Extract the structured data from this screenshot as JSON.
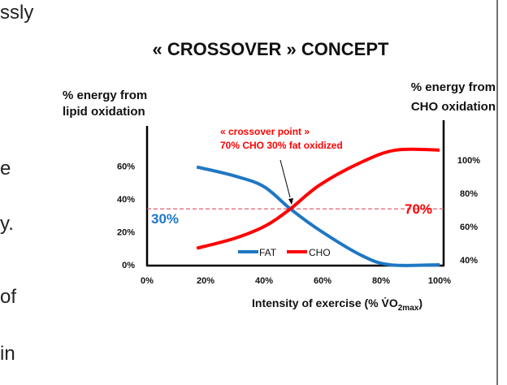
{
  "background_text": [
    "ssly",
    "e",
    "y.",
    "of",
    "in"
  ],
  "chart_data": {
    "type": "line",
    "title": "« CROSSOVER » CONCEPT",
    "xlabel": "Intensity of exercise (% V̇O",
    "xlabel_sub": "2max",
    "xlabel_end": ")",
    "ylabel_left": [
      "% energy from",
      "lipid oxidation"
    ],
    "ylabel_right": [
      "% energy from",
      "CHO oxidation"
    ],
    "x_ticks": [
      "0%",
      "20%",
      "40%",
      "60%",
      "80%",
      "100%"
    ],
    "y_left_ticks": [
      "0%",
      "20%",
      "40%",
      "60%"
    ],
    "y_right_ticks": [
      "40%",
      "60%",
      "80%",
      "100%"
    ],
    "xlim": [
      0,
      100
    ],
    "ylim_left": [
      0,
      84
    ],
    "ylim_right": [
      40,
      123
    ],
    "series": [
      {
        "name": "FAT",
        "axis": "left",
        "color": "#1f77c4",
        "x": [
          17,
          30,
          40,
          49,
          59,
          73,
          83,
          100
        ],
        "y": [
          59.5,
          54,
          47.5,
          34,
          21,
          6,
          0,
          0
        ]
      },
      {
        "name": "CHO",
        "axis": "right",
        "color": "#ff0000",
        "x": [
          17,
          30,
          40.5,
          49,
          59,
          73,
          85,
          100
        ],
        "y": [
          47,
          53,
          60.5,
          70.7,
          85,
          98.5,
          106,
          106
        ]
      }
    ],
    "reference_line": {
      "axis": "right",
      "value": 70.7,
      "style": "dashed",
      "color": "#e06070"
    },
    "annotations": {
      "crossover_line1": "« crossover point »",
      "crossover_line2": "70% CHO 30% fat oxidized",
      "fat_label": "30%",
      "cho_label": "70%"
    },
    "legend": {
      "placement": "bottom-center"
    }
  }
}
